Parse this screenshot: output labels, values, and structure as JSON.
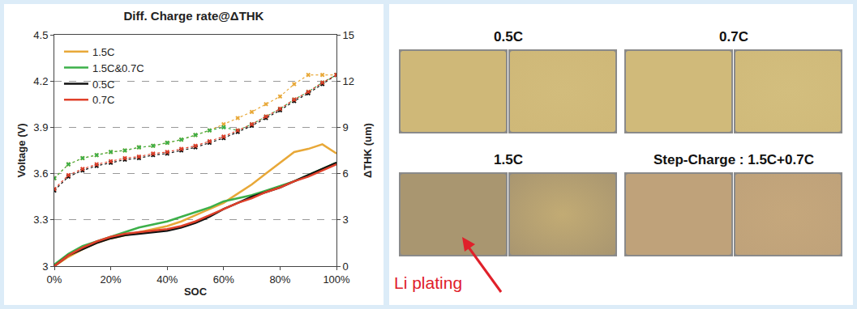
{
  "chart_data": {
    "type": "line",
    "title": "Diff. Charge rate@ΔTHK",
    "x_label": "SOC",
    "y_label": "Voltage (V)",
    "y2_label": "ΔTHK (um)",
    "x": [
      0,
      5,
      10,
      15,
      20,
      25,
      30,
      35,
      40,
      45,
      50,
      55,
      60,
      65,
      70,
      75,
      80,
      85,
      90,
      95,
      100
    ],
    "xlim": [
      0,
      100
    ],
    "xticks": [
      {
        "value": 0,
        "label": "0%"
      },
      {
        "value": 20,
        "label": "20%"
      },
      {
        "value": 40,
        "label": "40%"
      },
      {
        "value": 60,
        "label": "60%"
      },
      {
        "value": 80,
        "label": "80%"
      },
      {
        "value": 100,
        "label": "100%"
      }
    ],
    "ylim": [
      3,
      4.5
    ],
    "yticks": [
      3,
      3.3,
      3.6,
      3.9,
      4.2,
      4.5
    ],
    "y2lim": [
      0,
      15
    ],
    "y2ticks": [
      0,
      3,
      6,
      9,
      12,
      15
    ],
    "grid": true,
    "legend": "upper left",
    "series": [
      {
        "name": "1.5C",
        "color": "#e8a838",
        "axis": "y2",
        "line_style": "solid",
        "values": [
          0,
          0.6,
          1.1,
          1.5,
          1.8,
          2.0,
          2.2,
          2.4,
          2.6,
          2.9,
          3.3,
          3.7,
          4.1,
          4.7,
          5.3,
          6.0,
          6.7,
          7.4,
          7.6,
          7.9,
          7.3
        ]
      },
      {
        "name": "1.5C&0.7C",
        "color": "#3cb04a",
        "axis": "y2",
        "line_style": "solid",
        "values": [
          0.1,
          0.8,
          1.3,
          1.6,
          1.9,
          2.2,
          2.5,
          2.7,
          2.9,
          3.2,
          3.5,
          3.8,
          4.2,
          4.4,
          4.6,
          4.9,
          5.2,
          5.5,
          5.9,
          6.3,
          6.7
        ]
      },
      {
        "name": "0.5C",
        "color": "#111111",
        "axis": "y2",
        "line_style": "solid",
        "values": [
          0,
          0.7,
          1.1,
          1.5,
          1.8,
          2.0,
          2.1,
          2.2,
          2.3,
          2.5,
          2.8,
          3.2,
          3.7,
          4.1,
          4.5,
          4.8,
          5.1,
          5.5,
          5.9,
          6.3,
          6.7
        ]
      },
      {
        "name": "0.7C",
        "color": "#e0402a",
        "axis": "y2",
        "line_style": "solid",
        "values": [
          0,
          0.7,
          1.2,
          1.6,
          1.9,
          2.1,
          2.2,
          2.3,
          2.4,
          2.6,
          2.9,
          3.3,
          3.7,
          4.1,
          4.4,
          4.8,
          5.1,
          5.5,
          5.8,
          6.2,
          6.6
        ]
      },
      {
        "name": "1.5C",
        "color": "#e8a838",
        "axis": "y",
        "line_style": "dotted",
        "marker": "x",
        "values": [
          3.57,
          3.66,
          3.7,
          3.72,
          3.74,
          3.75,
          3.77,
          3.78,
          3.8,
          3.82,
          3.85,
          3.88,
          3.92,
          3.96,
          4.0,
          4.05,
          4.1,
          4.18,
          4.24,
          4.24,
          4.24
        ]
      },
      {
        "name": "1.5C&0.7C",
        "color": "#3cb04a",
        "axis": "y",
        "line_style": "dotted",
        "marker": "x",
        "values": [
          3.57,
          3.66,
          3.7,
          3.72,
          3.74,
          3.75,
          3.77,
          3.78,
          3.8,
          3.82,
          3.85,
          3.88,
          3.9,
          3.88,
          3.92,
          3.97,
          4.02,
          4.08,
          4.13,
          4.19,
          4.24
        ]
      },
      {
        "name": "0.5C",
        "color": "#111111",
        "axis": "y",
        "line_style": "dotted",
        "marker": "x",
        "values": [
          3.49,
          3.58,
          3.62,
          3.65,
          3.67,
          3.69,
          3.7,
          3.72,
          3.73,
          3.75,
          3.77,
          3.8,
          3.83,
          3.87,
          3.91,
          3.96,
          4.01,
          4.07,
          4.12,
          4.18,
          4.24
        ]
      },
      {
        "name": "0.7C",
        "color": "#e0402a",
        "axis": "y",
        "line_style": "dotted",
        "marker": "x",
        "values": [
          3.5,
          3.59,
          3.63,
          3.66,
          3.68,
          3.7,
          3.71,
          3.73,
          3.74,
          3.76,
          3.78,
          3.81,
          3.84,
          3.88,
          3.92,
          3.97,
          4.02,
          4.08,
          4.13,
          4.19,
          4.24
        ]
      }
    ]
  },
  "photos": {
    "groups": [
      {
        "label": "0.5C"
      },
      {
        "label": "0.7C"
      },
      {
        "label": "1.5C"
      },
      {
        "label": "Step-Charge : 1.5C+0.7C"
      }
    ],
    "annotation": {
      "text": "Li plating",
      "group": 2
    }
  }
}
